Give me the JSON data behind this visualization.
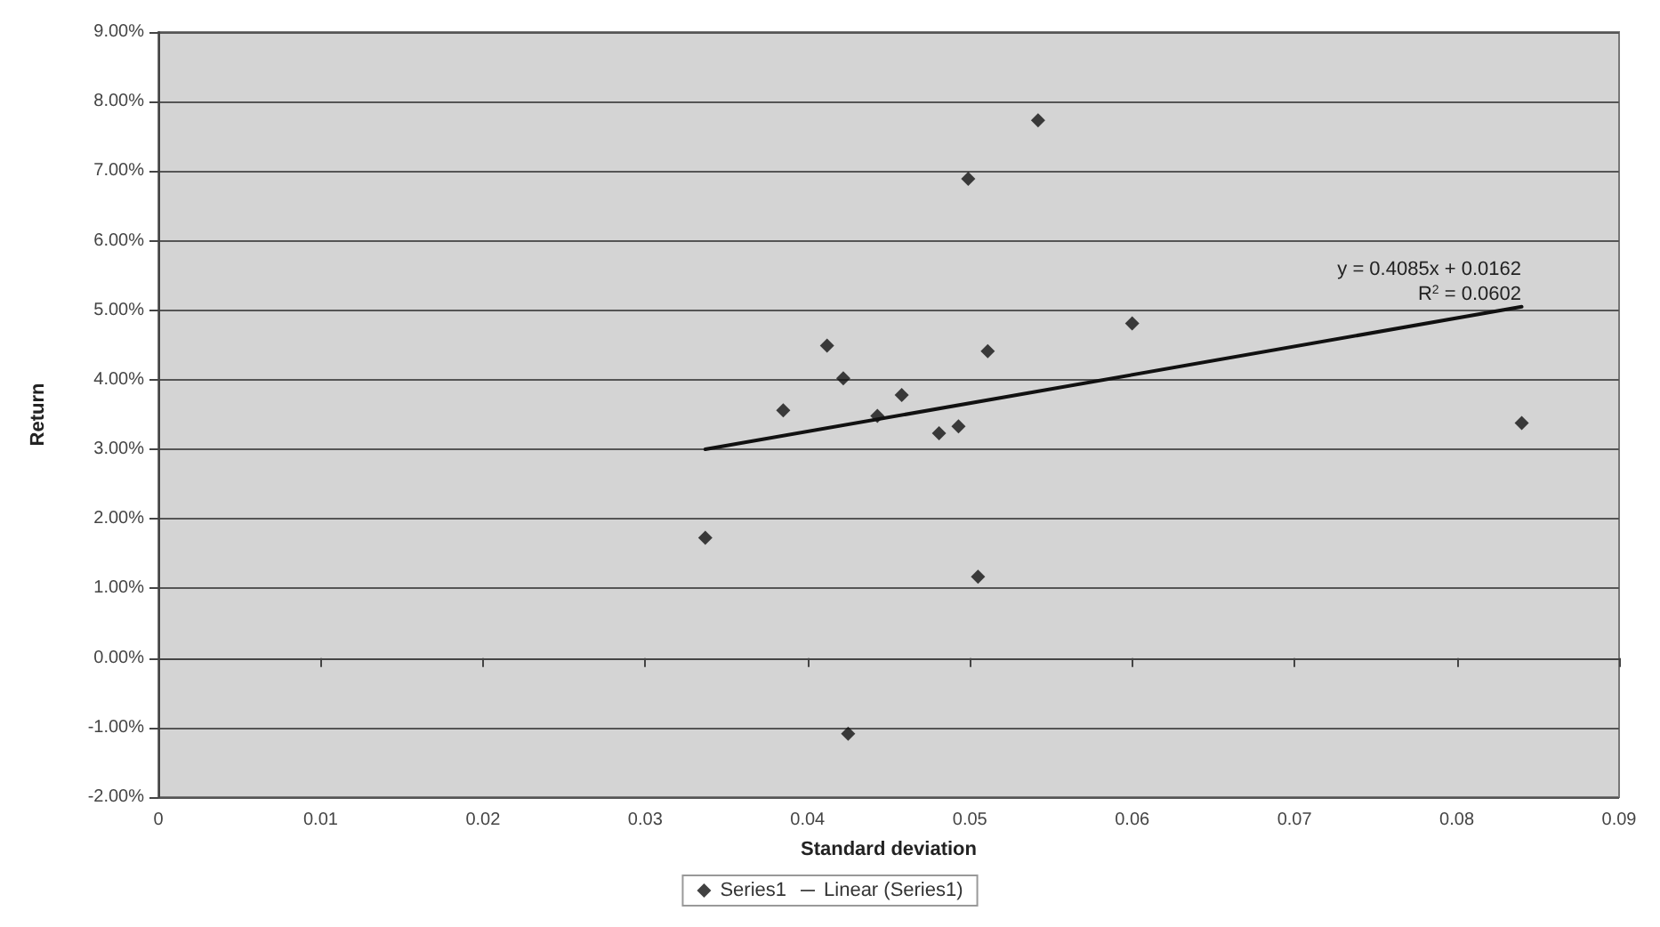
{
  "chart_data": {
    "type": "scatter",
    "xlabel": "Standard deviation",
    "ylabel": "Return",
    "xlim": [
      0,
      0.09
    ],
    "xticks": [
      0,
      0.01,
      0.02,
      0.03,
      0.04,
      0.05,
      0.06,
      0.07,
      0.08,
      0.09
    ],
    "ylim": [
      -0.02,
      0.09
    ],
    "yticks": [
      {
        "value": -0.02,
        "label": "-2.00%"
      },
      {
        "value": -0.01,
        "label": "-1.00%"
      },
      {
        "value": 0,
        "label": "0.00%"
      },
      {
        "value": 0.01,
        "label": "1.00%"
      },
      {
        "value": 0.02,
        "label": "2.00%"
      },
      {
        "value": 0.03,
        "label": "3.00%"
      },
      {
        "value": 0.04,
        "label": "4.00%"
      },
      {
        "value": 0.05,
        "label": "5.00%"
      },
      {
        "value": 0.06,
        "label": "6.00%"
      },
      {
        "value": 0.07,
        "label": "7.00%"
      },
      {
        "value": 0.08,
        "label": "8.00%"
      },
      {
        "value": 0.09,
        "label": "9.00%"
      }
    ],
    "grid": "y",
    "legend": "bottom",
    "marker": "diamond",
    "series": [
      {
        "name": "Series1",
        "color": "#111111",
        "x": [
          0.0337,
          0.0385,
          0.0412,
          0.0422,
          0.0443,
          0.0458,
          0.0481,
          0.0493,
          0.0499,
          0.0505,
          0.0511,
          0.0542,
          0.06,
          0.0425,
          0.084
        ],
        "values": [
          0.0173,
          0.0356,
          0.0449,
          0.0402,
          0.0348,
          0.0378,
          0.0323,
          0.0333,
          0.0689,
          0.0117,
          0.0441,
          0.0773,
          0.0481,
          -0.0109,
          0.0338
        ]
      },
      {
        "name": "Linear (Series1)",
        "type": "line",
        "color": "#111111",
        "marker": "none",
        "line_style": "solid",
        "x": [
          0.0337,
          0.084
        ],
        "values": [
          0.03,
          0.0505
        ]
      }
    ],
    "annotations": [
      "y = 0.4085x + 0.0162",
      "R$^{2}$ = 0.0602"
    ]
  }
}
